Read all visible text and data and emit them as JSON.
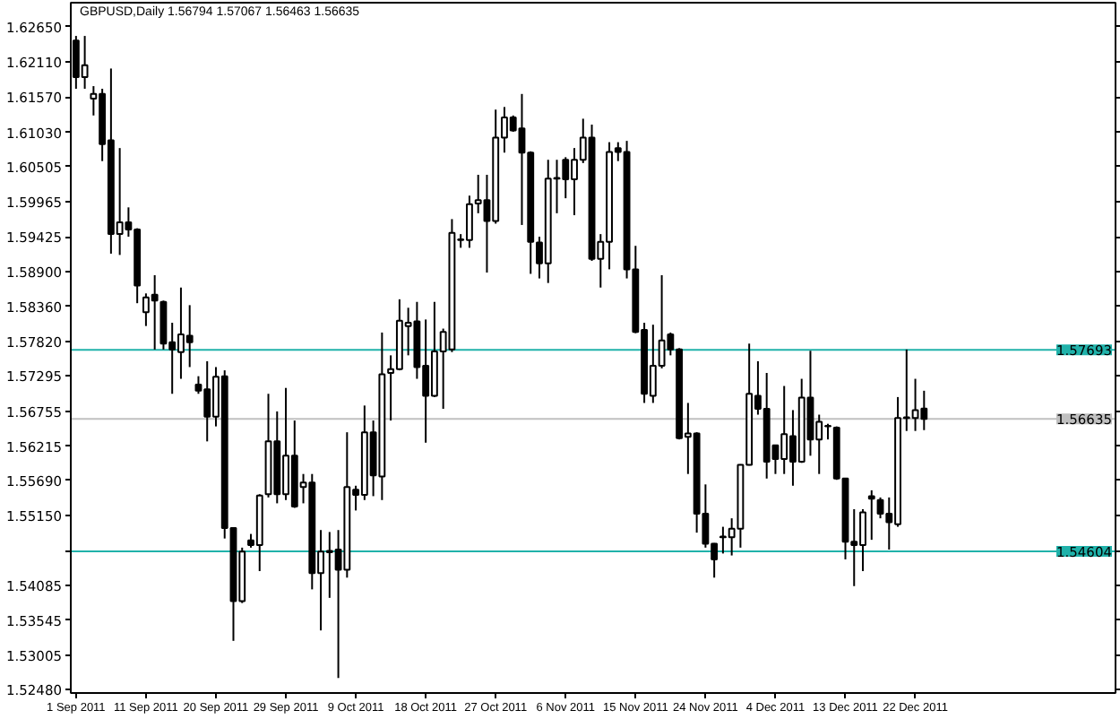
{
  "chart_data": {
    "type": "candlestick",
    "title": "GBPUSD,Daily  1.56794 1.57067 1.56463 1.56635",
    "categories": [
      "1 Sep 2011",
      null,
      null,
      null,
      null,
      null,
      null,
      null,
      "11 Sep 2011",
      null,
      null,
      null,
      null,
      null,
      null,
      null,
      "20 Sep 2011",
      null,
      null,
      null,
      null,
      null,
      null,
      null,
      "29 Sep 2011",
      null,
      null,
      null,
      null,
      null,
      null,
      null,
      "9 Oct 2011",
      null,
      null,
      null,
      null,
      null,
      null,
      null,
      "18 Oct 2011",
      null,
      null,
      null,
      null,
      null,
      null,
      null,
      "27 Oct 2011",
      null,
      null,
      null,
      null,
      null,
      null,
      null,
      "6 Nov 2011",
      null,
      null,
      null,
      null,
      null,
      null,
      null,
      "15 Nov 2011",
      null,
      null,
      null,
      null,
      null,
      null,
      null,
      "24 Nov 2011",
      null,
      null,
      null,
      null,
      null,
      null,
      null,
      "4 Dec 2011",
      null,
      null,
      null,
      null,
      null,
      null,
      null,
      "13 Dec 2011",
      null,
      null,
      null,
      null,
      null,
      null,
      null,
      "22 Dec 2011",
      null
    ],
    "ohlc": [
      [
        1.6244,
        1.6251,
        1.617,
        1.6188
      ],
      [
        1.6188,
        1.6251,
        1.617,
        1.6206
      ],
      [
        1.6155,
        1.6174,
        1.6129,
        1.6162
      ],
      [
        1.6162,
        1.617,
        1.6059,
        1.6085
      ],
      [
        1.6091,
        1.6201,
        1.5917,
        1.5947
      ],
      [
        1.5947,
        1.6079,
        1.5915,
        1.5965
      ],
      [
        1.5965,
        1.5988,
        1.5943,
        1.5954
      ],
      [
        1.5954,
        1.5956,
        1.5841,
        1.5868
      ],
      [
        1.5827,
        1.5856,
        1.5806,
        1.585
      ],
      [
        1.5854,
        1.5884,
        1.577,
        1.5845
      ],
      [
        1.5843,
        1.5845,
        1.577,
        1.5779
      ],
      [
        1.5781,
        1.5811,
        1.5702,
        1.577
      ],
      [
        1.5766,
        1.5865,
        1.5725,
        1.5793
      ],
      [
        1.5791,
        1.5838,
        1.5743,
        1.5781
      ],
      [
        1.5716,
        1.5729,
        1.5702,
        1.5707
      ],
      [
        1.5709,
        1.5752,
        1.5629,
        1.5667
      ],
      [
        1.5667,
        1.5743,
        1.5652,
        1.5728
      ],
      [
        1.5729,
        1.5738,
        1.548,
        1.5496
      ],
      [
        1.5496,
        1.5497,
        1.5323,
        1.5384
      ],
      [
        1.5384,
        1.5466,
        1.5381,
        1.546
      ],
      [
        1.5477,
        1.5487,
        1.5466,
        1.547
      ],
      [
        1.547,
        1.5548,
        1.543,
        1.5546
      ],
      [
        1.5548,
        1.5702,
        1.5543,
        1.5629
      ],
      [
        1.5629,
        1.5675,
        1.5534,
        1.5548
      ],
      [
        1.5548,
        1.5711,
        1.5539,
        1.5607
      ],
      [
        1.5607,
        1.5661,
        1.5527,
        1.5529
      ],
      [
        1.5559,
        1.5579,
        1.5534,
        1.5566
      ],
      [
        1.5566,
        1.5579,
        1.5402,
        1.5427
      ],
      [
        1.5427,
        1.5493,
        1.5339,
        1.546
      ],
      [
        1.5461,
        1.549,
        1.5389,
        1.5459
      ],
      [
        1.5463,
        1.5493,
        1.5266,
        1.5432
      ],
      [
        1.5432,
        1.5643,
        1.542,
        1.5559
      ],
      [
        1.5555,
        1.5561,
        1.5523,
        1.5547
      ],
      [
        1.5547,
        1.5684,
        1.5539,
        1.5643
      ],
      [
        1.5643,
        1.5661,
        1.5545,
        1.5577
      ],
      [
        1.5575,
        1.5796,
        1.5539,
        1.5732
      ],
      [
        1.5734,
        1.5761,
        1.5661,
        1.574
      ],
      [
        1.574,
        1.5847,
        1.5738,
        1.5814
      ],
      [
        1.5806,
        1.5834,
        1.5761,
        1.5811
      ],
      [
        1.5813,
        1.5843,
        1.5725,
        1.5743
      ],
      [
        1.5745,
        1.5816,
        1.5627,
        1.5699
      ],
      [
        1.5699,
        1.5843,
        1.5697,
        1.5767
      ],
      [
        1.5767,
        1.5802,
        1.5679,
        1.5797
      ],
      [
        1.577,
        1.597,
        1.5766,
        1.5949
      ],
      [
        1.5938,
        1.5947,
        1.5926,
        1.5939
      ],
      [
        1.5938,
        1.6006,
        1.5926,
        1.5993
      ],
      [
        1.5994,
        1.6038,
        1.5979,
        1.5999
      ],
      [
        1.5999,
        1.6038,
        1.5888,
        1.5967
      ],
      [
        1.5967,
        1.6138,
        1.5963,
        1.6095
      ],
      [
        1.6095,
        1.6142,
        1.6072,
        1.6126
      ],
      [
        1.6126,
        1.6129,
        1.6104,
        1.6106
      ],
      [
        1.6109,
        1.6162,
        1.5961,
        1.6072
      ],
      [
        1.6072,
        1.6074,
        1.5886,
        1.5935
      ],
      [
        1.5934,
        1.5943,
        1.5879,
        1.5902
      ],
      [
        1.5902,
        1.6061,
        1.5872,
        1.6032
      ],
      [
        1.6032,
        1.6061,
        1.5979,
        1.6033
      ],
      [
        1.6061,
        1.6065,
        1.6002,
        1.6031
      ],
      [
        1.6031,
        1.6079,
        1.5976,
        1.6061
      ],
      [
        1.6061,
        1.6124,
        1.6056,
        1.6095
      ],
      [
        1.6095,
        1.6115,
        1.5906,
        1.5909
      ],
      [
        1.5909,
        1.5947,
        1.5865,
        1.5935
      ],
      [
        1.5935,
        1.6088,
        1.5893,
        1.6073
      ],
      [
        1.6079,
        1.6088,
        1.6059,
        1.6073
      ],
      [
        1.6073,
        1.609,
        1.5879,
        1.5893
      ],
      [
        1.5893,
        1.5929,
        1.5795,
        1.5797
      ],
      [
        1.58,
        1.5811,
        1.5688,
        1.5702
      ],
      [
        1.5699,
        1.5808,
        1.5688,
        1.5745
      ],
      [
        1.5745,
        1.5884,
        1.5741,
        1.5784
      ],
      [
        1.5793,
        1.5796,
        1.5761,
        1.577
      ],
      [
        1.577,
        1.5772,
        1.5632,
        1.5634
      ],
      [
        1.5636,
        1.5688,
        1.5579,
        1.5641
      ],
      [
        1.5641,
        1.5643,
        1.5489,
        1.5518
      ],
      [
        1.5518,
        1.5563,
        1.5466,
        1.5472
      ],
      [
        1.5472,
        1.5473,
        1.542,
        1.5448
      ],
      [
        1.5482,
        1.5498,
        1.5457,
        1.5483
      ],
      [
        1.5482,
        1.5511,
        1.5454,
        1.5495
      ],
      [
        1.5495,
        1.5594,
        1.5466,
        1.5593
      ],
      [
        1.5593,
        1.5779,
        1.5592,
        1.5702
      ],
      [
        1.5699,
        1.5752,
        1.567,
        1.5679
      ],
      [
        1.5679,
        1.5734,
        1.5572,
        1.5598
      ],
      [
        1.5623,
        1.5624,
        1.5579,
        1.5602
      ],
      [
        1.5602,
        1.5714,
        1.5579,
        1.564
      ],
      [
        1.5637,
        1.5677,
        1.5561,
        1.5598
      ],
      [
        1.5598,
        1.5725,
        1.5596,
        1.5696
      ],
      [
        1.5696,
        1.5768,
        1.5607,
        1.5632
      ],
      [
        1.5632,
        1.567,
        1.5579,
        1.5659
      ],
      [
        1.5652,
        1.5656,
        1.5632,
        1.5653
      ],
      [
        1.565,
        1.5652,
        1.557,
        1.5572
      ],
      [
        1.5572,
        1.5573,
        1.5448,
        1.5475
      ],
      [
        1.5475,
        1.5525,
        1.5407,
        1.547
      ],
      [
        1.547,
        1.5525,
        1.543,
        1.552
      ],
      [
        1.5545,
        1.5554,
        1.5478,
        1.5541
      ],
      [
        1.5539,
        1.5543,
        1.5511,
        1.5518
      ],
      [
        1.5518,
        1.5543,
        1.5463,
        1.5505
      ],
      [
        1.5502,
        1.5697,
        1.5498,
        1.5665
      ],
      [
        1.5665,
        1.577,
        1.5645,
        1.5666
      ],
      [
        1.5665,
        1.5725,
        1.5645,
        1.5677
      ],
      [
        1.56794,
        1.57067,
        1.56463,
        1.56635
      ]
    ],
    "ylim": [
      1.5243,
      1.6302
    ],
    "yticks": [
      {
        "value": 1.6265,
        "label": "1.62650"
      },
      {
        "value": 1.6211,
        "label": "1.62110"
      },
      {
        "value": 1.6157,
        "label": "1.61570"
      },
      {
        "value": 1.6103,
        "label": "1.61030"
      },
      {
        "value": 1.60505,
        "label": "1.60505"
      },
      {
        "value": 1.59965,
        "label": "1.59965"
      },
      {
        "value": 1.59425,
        "label": "1.59425"
      },
      {
        "value": 1.589,
        "label": "1.58900"
      },
      {
        "value": 1.5836,
        "label": "1.58360"
      },
      {
        "value": 1.5782,
        "label": "1.57820"
      },
      {
        "value": 1.57295,
        "label": "1.57295"
      },
      {
        "value": 1.56755,
        "label": "1.56755"
      },
      {
        "value": 1.56215,
        "label": "1.56215"
      },
      {
        "value": 1.5569,
        "label": "1.55690"
      },
      {
        "value": 1.5515,
        "label": "1.55150"
      },
      {
        "value": 1.5461,
        "label": null
      },
      {
        "value": 1.54085,
        "label": "1.54085"
      },
      {
        "value": 1.53545,
        "label": "1.53545"
      },
      {
        "value": 1.53005,
        "label": "1.53005"
      },
      {
        "value": 1.5248,
        "label": "1.52480"
      }
    ],
    "ref_lines": [
      {
        "axis": "y",
        "value": 1.57693,
        "label": "1.57693",
        "color": "#20b2aa"
      },
      {
        "axis": "y",
        "value": 1.54604,
        "label": "1.54604",
        "color": "#20b2aa"
      },
      {
        "axis": "y",
        "value": 1.56635,
        "label": "1.56635",
        "color": "#c0c0c0"
      }
    ],
    "grid": false
  }
}
